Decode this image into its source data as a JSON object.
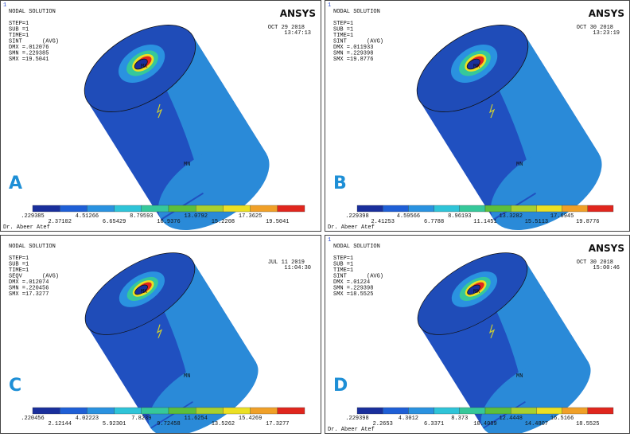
{
  "panels": [
    {
      "label": "A",
      "index": "1",
      "title": "NODAL SOLUTION",
      "info": [
        "STEP=1",
        "SUB =1",
        "TIME=1",
        "SINT      (AVG)",
        "DMX =.012076",
        "SMN =.229385",
        "SMX =19.5041"
      ],
      "date": "OCT 29 2018",
      "time": "13:47:13",
      "logo": "ANSYS",
      "markers": [
        "MX",
        "MN"
      ],
      "legend_top": [
        ".229385",
        "4.51266",
        "8.79593",
        "13.0792",
        "17.3625"
      ],
      "legend_bottom": [
        "2.37102",
        "6.65429",
        "10.9376",
        "15.2208",
        "19.5041"
      ],
      "footer": "Dr. Abeer Atef"
    },
    {
      "label": "B",
      "index": "1",
      "title": "NODAL SOLUTION",
      "info": [
        "STEP=1",
        "SUB =1",
        "TIME=1",
        "SINT      (AVG)",
        "DMX =.011933",
        "SMN =.229398",
        "SMX =19.8776"
      ],
      "date": "OCT 30 2018",
      "time": "13:23:19",
      "logo": "ANSYS",
      "markers": [
        "MX",
        "MN"
      ],
      "legend_top": [
        ".229398",
        "4.59566",
        "8.96193",
        "13.3282",
        "17.6945"
      ],
      "legend_bottom": [
        "2.41253",
        "6.7788",
        "11.1451",
        "15.5113",
        "19.8776"
      ],
      "footer": "Dr. Abeer Atef"
    },
    {
      "label": "C",
      "title": "NODAL SOLUTION",
      "info": [
        "STEP=1",
        "SUB =1",
        "TIME=1",
        "SEQV      (AVG)",
        "DMX =.012074",
        "SMN =.220456",
        "SMX =17.3277"
      ],
      "date": "JUL 11 2019",
      "time": "11:04:30",
      "markers": [
        "MX",
        "MN"
      ],
      "legend_top": [
        ".220456",
        "4.02223",
        "7.8239",
        "11.6254",
        "15.4269"
      ],
      "legend_bottom": [
        "2.12144",
        "5.92301",
        "9.72458",
        "13.5262",
        "17.3277"
      ]
    },
    {
      "label": "D",
      "index": "1",
      "title": "NODAL SOLUTION",
      "info": [
        "STEP=1",
        "SUB =1",
        "TIME=1",
        "SINT      (AVG)",
        "DMX =.01224",
        "SMN =.229398",
        "SMX =18.5525"
      ],
      "date": "OCT 30 2018",
      "time": "15:00:46",
      "logo": "ANSYS",
      "markers": [
        "MX",
        "MN"
      ],
      "legend_top": [
        ".229398",
        "4.3012",
        "8.373",
        "12.4448",
        "16.5166"
      ],
      "legend_bottom": [
        "2.2653",
        "6.3371",
        "10.4089",
        "14.4807",
        "18.5525"
      ],
      "footer": "Dr. Abeer Atef"
    }
  ]
}
